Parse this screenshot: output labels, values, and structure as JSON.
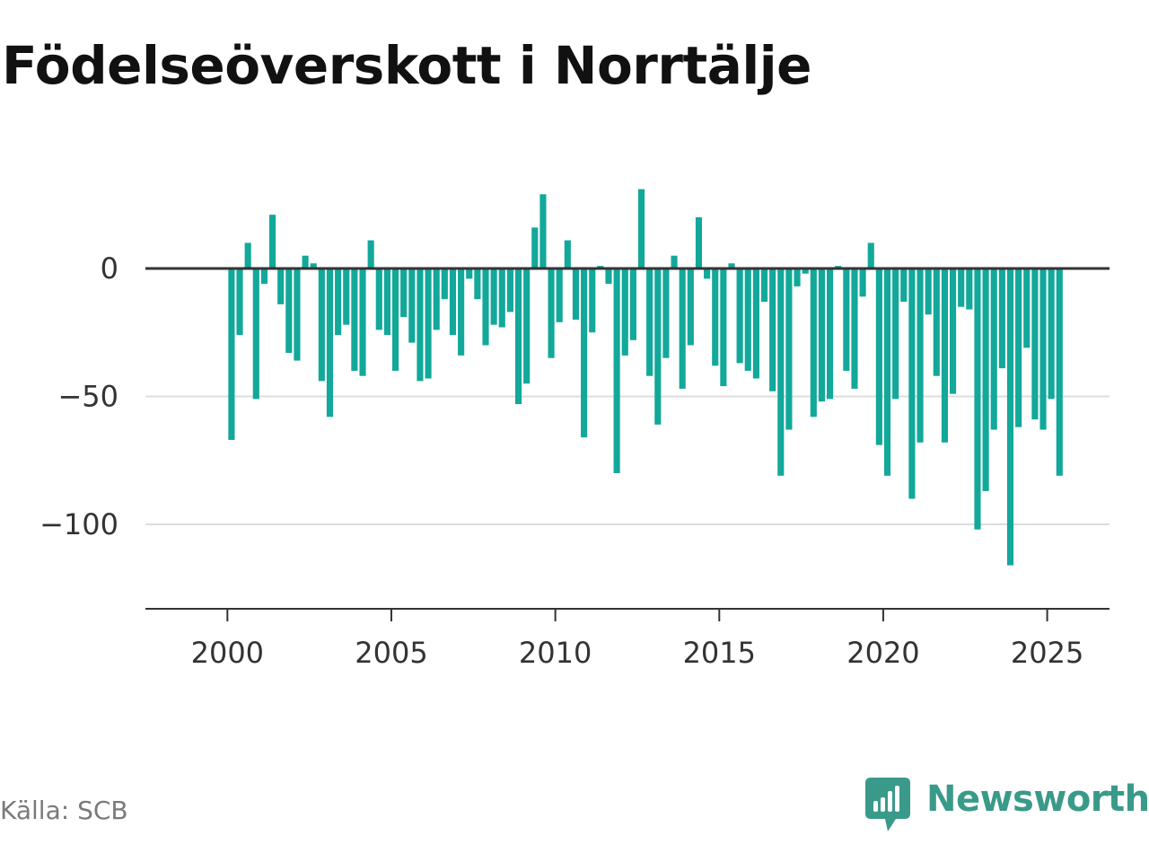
{
  "title": "Födelseöverskott i Norrtälje",
  "source": "Källa: SCB",
  "brand": {
    "name": "Newsworthy",
    "color": "#3a9a8a",
    "icon": "newsworthy-chart-bubble-icon"
  },
  "colors": {
    "bar": "#12a89a",
    "zero_line": "#333333",
    "grid": "#dddddd",
    "axis": "#333333"
  },
  "chart_data": {
    "type": "bar",
    "title": "Födelseöverskott i Norrtälje",
    "xlabel": "",
    "ylabel": "",
    "grid": true,
    "xlim": [
      1997.5,
      2026.9
    ],
    "ylim": [
      -133,
      40
    ],
    "x_ticks": [
      {
        "value": 2000,
        "label": "2000"
      },
      {
        "value": 2005,
        "label": "2005"
      },
      {
        "value": 2010,
        "label": "2010"
      },
      {
        "value": 2015,
        "label": "2015"
      },
      {
        "value": 2020,
        "label": "2020"
      },
      {
        "value": 2025,
        "label": "2025"
      }
    ],
    "y_ticks": [
      {
        "value": 0,
        "label": "0"
      },
      {
        "value": -50,
        "label": "−50"
      },
      {
        "value": -100,
        "label": "−100"
      }
    ],
    "x": [
      2000.125,
      2000.375,
      2000.625,
      2000.875,
      2001.125,
      2001.375,
      2001.625,
      2001.875,
      2002.125,
      2002.375,
      2002.625,
      2002.875,
      2003.125,
      2003.375,
      2003.625,
      2003.875,
      2004.125,
      2004.375,
      2004.625,
      2004.875,
      2005.125,
      2005.375,
      2005.625,
      2005.875,
      2006.125,
      2006.375,
      2006.625,
      2006.875,
      2007.125,
      2007.375,
      2007.625,
      2007.875,
      2008.125,
      2008.375,
      2008.625,
      2008.875,
      2009.125,
      2009.375,
      2009.625,
      2009.875,
      2010.125,
      2010.375,
      2010.625,
      2010.875,
      2011.125,
      2011.375,
      2011.625,
      2011.875,
      2012.125,
      2012.375,
      2012.625,
      2012.875,
      2013.125,
      2013.375,
      2013.625,
      2013.875,
      2014.125,
      2014.375,
      2014.625,
      2014.875,
      2015.125,
      2015.375,
      2015.625,
      2015.875,
      2016.125,
      2016.375,
      2016.625,
      2016.875,
      2017.125,
      2017.375,
      2017.625,
      2017.875,
      2018.125,
      2018.375,
      2018.625,
      2018.875,
      2019.125,
      2019.375,
      2019.625,
      2019.875,
      2020.125,
      2020.375,
      2020.625,
      2020.875,
      2021.125,
      2021.375,
      2021.625,
      2021.875,
      2022.125,
      2022.375,
      2022.625,
      2022.875,
      2023.125,
      2023.375,
      2023.625,
      2023.875,
      2024.125,
      2024.375,
      2024.625,
      2024.875,
      2025.125,
      2025.375
    ],
    "values": [
      -67,
      -26,
      10,
      -51,
      -6,
      21,
      -14,
      -33,
      -36,
      5,
      2,
      -44,
      -58,
      -26,
      -22,
      -40,
      -42,
      11,
      -24,
      -26,
      -40,
      -19,
      -29,
      -44,
      -43,
      -24,
      -12,
      -26,
      -34,
      -4,
      -12,
      -30,
      -22,
      -23,
      -17,
      -53,
      -45,
      16,
      29,
      -35,
      -21,
      11,
      -20,
      -66,
      -25,
      1,
      -6,
      -80,
      -34,
      -28,
      31,
      -42,
      -61,
      -35,
      5,
      -47,
      -30,
      20,
      -4,
      -38,
      -46,
      2,
      -37,
      -40,
      -43,
      -13,
      -48,
      -81,
      -63,
      -7,
      -2,
      -58,
      -52,
      -51,
      1,
      -40,
      -47,
      -11,
      10,
      -69,
      -81,
      -51,
      -13,
      -90,
      -68,
      -18,
      -42,
      -68,
      -49,
      -15,
      -16,
      -102,
      -87,
      -63,
      -39,
      -116,
      -62,
      -31,
      -59,
      -63,
      -51,
      -81
    ]
  }
}
